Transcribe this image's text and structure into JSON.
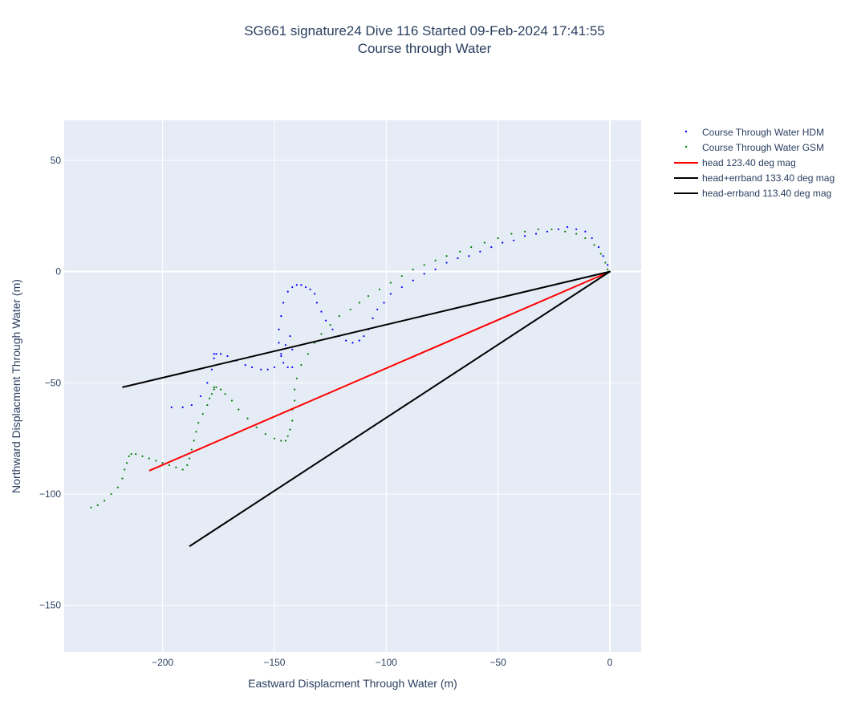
{
  "title": {
    "line1": "SG661 signature24 Dive 116 Started 09-Feb-2024 17:41:55",
    "line2": "Course through Water"
  },
  "chart_data": {
    "type": "scatter",
    "title": "SG661 signature24 Dive 116 Started 09-Feb-2024 17:41:55 Course through Water",
    "xlabel": "Eastward Displacment Through Water (m)",
    "ylabel": "Northward Displacment Through Water (m)",
    "xlim": [
      -244,
      14
    ],
    "ylim": [
      -171,
      68
    ],
    "xticks": [
      -200,
      -150,
      -100,
      -50,
      0
    ],
    "yticks": [
      -150,
      -100,
      -50,
      0,
      50
    ],
    "xtick_labels": [
      "−200",
      "−150",
      "−100",
      "−50",
      "0"
    ],
    "ytick_labels": [
      "−150",
      "−100",
      "−50",
      "0",
      "50"
    ],
    "grid": true,
    "legend_position": "right",
    "series": [
      {
        "name": "Course Through Water HDM",
        "kind": "markers",
        "color": "#0000ff",
        "x": [
          0,
          -1,
          -3,
          -5,
          -8,
          -11,
          -15,
          -19,
          -23,
          -28,
          -33,
          -38,
          -43,
          -48,
          -53,
          -58,
          -63,
          -68,
          -73,
          -78,
          -83,
          -88,
          -93,
          -98,
          -101,
          -104,
          -106,
          -108,
          -110,
          -112,
          -115,
          -118,
          -121,
          -124,
          -127,
          -129,
          -131,
          -132,
          -134,
          -136,
          -138,
          -140,
          -142,
          -144,
          -146,
          -147,
          -148,
          -148,
          -147,
          -146,
          -144,
          -142,
          -142,
          -143,
          -145,
          -147,
          -150,
          -153,
          -156,
          -160,
          -163,
          -167,
          -171,
          -174,
          -176,
          -177,
          -177,
          -178,
          -180,
          -183,
          -187,
          -191,
          -196
        ],
        "y": [
          0,
          3,
          7,
          11,
          15,
          18,
          19,
          20,
          19,
          18,
          17,
          16,
          14,
          13,
          11,
          9,
          7,
          6,
          4,
          1,
          -1,
          -4,
          -7,
          -10,
          -14,
          -17,
          -21,
          -26,
          -29,
          -31,
          -32,
          -31,
          -29,
          -26,
          -22,
          -18,
          -14,
          -10,
          -8,
          -7,
          -6,
          -6,
          -7,
          -9,
          -14,
          -20,
          -26,
          -32,
          -37,
          -41,
          -43,
          -43,
          -35,
          -29,
          -33,
          -38,
          -43,
          -44,
          -44,
          -43,
          -42,
          -40,
          -38,
          -37,
          -37,
          -37,
          -39,
          -44,
          -50,
          -56,
          -60,
          -61,
          -61
        ]
      },
      {
        "name": "Course Through Water GSM",
        "kind": "markers",
        "color": "#008000",
        "x": [
          0,
          -1,
          -2,
          -4,
          -7,
          -11,
          -15,
          -20,
          -26,
          -32,
          -38,
          -44,
          -50,
          -56,
          -62,
          -67,
          -73,
          -78,
          -83,
          -88,
          -93,
          -98,
          -103,
          -108,
          -112,
          -116,
          -121,
          -125,
          -129,
          -132,
          -135,
          -138,
          -140,
          -141,
          -141,
          -142,
          -142,
          -143,
          -144,
          -145,
          -147,
          -150,
          -154,
          -158,
          -162,
          -166,
          -169,
          -172,
          -174,
          -176,
          -177,
          -177,
          -178,
          -179,
          -180,
          -182,
          -184,
          -185,
          -186,
          -187,
          -188,
          -189,
          -191,
          -194,
          -197,
          -200,
          -203,
          -206,
          -209,
          -212,
          -214,
          -215,
          -216,
          -217,
          -218,
          -220,
          -223,
          -226,
          -229,
          -232
        ],
        "y": [
          0,
          1,
          4,
          8,
          12,
          15,
          17,
          18,
          19,
          19,
          18,
          17,
          15,
          13,
          11,
          9,
          7,
          5,
          3,
          1,
          -2,
          -5,
          -8,
          -11,
          -14,
          -17,
          -20,
          -24,
          -28,
          -32,
          -37,
          -42,
          -48,
          -53,
          -58,
          -62,
          -67,
          -71,
          -74,
          -76,
          -76,
          -75,
          -73,
          -70,
          -66,
          -62,
          -58,
          -55,
          -53,
          -52,
          -52,
          -53,
          -55,
          -57,
          -60,
          -64,
          -68,
          -72,
          -76,
          -80,
          -84,
          -87,
          -89,
          -88,
          -87,
          -86,
          -85,
          -84,
          -83,
          -82,
          -82,
          -83,
          -86,
          -89,
          -93,
          -97,
          -100,
          -103,
          -105,
          -106
        ]
      },
      {
        "name": "head 123.40 deg mag",
        "kind": "line",
        "color": "#ff0000",
        "x": [
          0,
          -206
        ],
        "y": [
          0,
          -89.5
        ]
      },
      {
        "name": "head+errband 133.40 deg mag",
        "kind": "line",
        "color": "#000000",
        "x": [
          0,
          -218
        ],
        "y": [
          0,
          -52
        ]
      },
      {
        "name": "head-errband 113.40 deg mag",
        "kind": "line",
        "color": "#000000",
        "x": [
          0,
          -188
        ],
        "y": [
          0,
          -123.5
        ]
      }
    ]
  }
}
